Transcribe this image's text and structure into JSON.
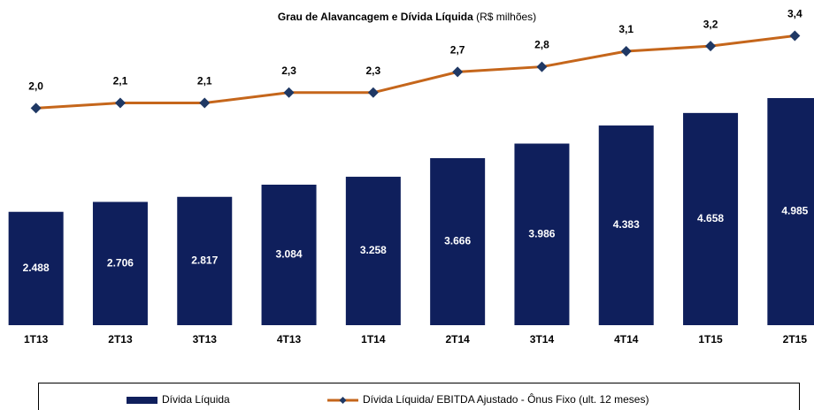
{
  "chart_data": {
    "type": "bar_line",
    "title": "Grau de Alavancagem e Dívida Líquida",
    "title_unit": "(R$ milhões)",
    "categories": [
      "1T13",
      "2T13",
      "3T13",
      "4T13",
      "1T14",
      "2T14",
      "3T14",
      "4T14",
      "1T15",
      "2T15"
    ],
    "series": [
      {
        "name": "Dívida Líquida",
        "type": "bar",
        "color": "#0f1f5c",
        "values": [
          2488,
          2706,
          2817,
          3084,
          3258,
          3666,
          3986,
          4383,
          4658,
          4985
        ],
        "value_labels": [
          "2.488",
          "2.706",
          "2.817",
          "3.084",
          "3.258",
          "3.666",
          "3.986",
          "4.383",
          "4.658",
          "4.985"
        ]
      },
      {
        "name": "Dívida Líquida/ EBITDA Ajustado - Ônus Fixo (ult. 12 meses)",
        "type": "line",
        "axis": "y2",
        "color": "#c5661b",
        "marker_color": "#1f3864",
        "values": [
          2.0,
          2.1,
          2.1,
          2.3,
          2.3,
          2.7,
          2.8,
          3.1,
          3.2,
          3.4
        ],
        "value_labels": [
          "2,0",
          "2,1",
          "2,1",
          "2,3",
          "2,3",
          "2,7",
          "2,8",
          "3,1",
          "3,2",
          "3,4"
        ]
      }
    ],
    "ylim": [
      0,
      6750
    ],
    "y2lim": [
      -2.2,
      3.75
    ],
    "legend": "bottom"
  }
}
